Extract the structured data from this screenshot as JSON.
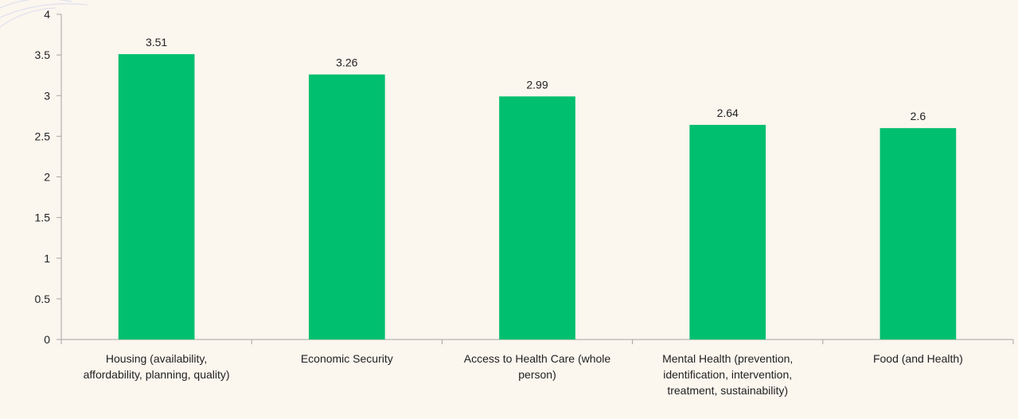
{
  "chart_data": {
    "type": "bar",
    "title": "",
    "xlabel": "",
    "ylabel": "",
    "ylim": [
      0,
      4
    ],
    "yticks": [
      "0",
      "0.5",
      "1",
      "1.5",
      "2",
      "2.5",
      "3",
      "3.5",
      "4"
    ],
    "grid": false,
    "categories": [
      [
        "Housing (availability,",
        "affordability, planning, quality)"
      ],
      [
        "Economic Security"
      ],
      [
        "Access to Health Care (whole",
        "person)"
      ],
      [
        "Mental Health (prevention,",
        "identification, intervention,",
        "treatment, sustainability)"
      ],
      [
        "Food (and Health)"
      ]
    ],
    "values": [
      3.51,
      3.26,
      2.99,
      2.64,
      2.6
    ],
    "data_labels": [
      "3.51",
      "3.26",
      "2.99",
      "2.64",
      "2.6"
    ],
    "colors": {
      "bar": "#00bf6f",
      "axis": "#a6a6a6",
      "background": "#fbf6ee"
    }
  }
}
